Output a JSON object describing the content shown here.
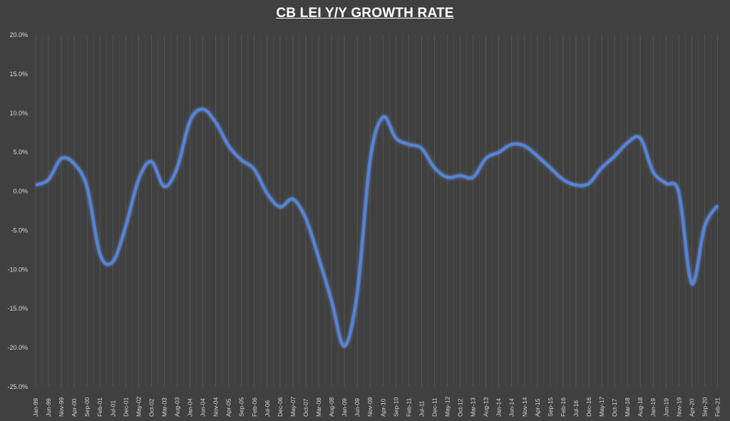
{
  "chart_data": {
    "type": "line",
    "title": "CB LEI Y/Y GROWTH RATE",
    "xlabel": "",
    "ylabel": "",
    "ylim": [
      -25,
      20
    ],
    "y_ticks": [
      "20.0%",
      "15.0%",
      "10.0%",
      "5.0%",
      "0.0%",
      "-5.0%",
      "-10.0%",
      "-15.0%",
      "-20.0%",
      "-25.0%"
    ],
    "x_tick_labels": [
      "Jan-99",
      "Jun-99",
      "Nov-99",
      "Apr-00",
      "Sep-00",
      "Feb-01",
      "Jul-01",
      "Dec-01",
      "May-02",
      "Oct-02",
      "Mar-03",
      "Aug-03",
      "Jan-04",
      "Jun-04",
      "Nov-04",
      "Apr-05",
      "Sep-05",
      "Feb-06",
      "Jul-06",
      "Dec-06",
      "May-07",
      "Oct-07",
      "Mar-08",
      "Aug-08",
      "Jan-09",
      "Jun-09",
      "Nov-09",
      "Apr-10",
      "Sep-10",
      "Feb-11",
      "Jul-11",
      "Dec-11",
      "May-12",
      "Oct-12",
      "Mar-13",
      "Aug-13",
      "Jan-14",
      "Jun-14",
      "Nov-14",
      "Apr-15",
      "Sep-15",
      "Feb-16",
      "Jul-16",
      "Dec-16",
      "May-17",
      "Oct-17",
      "Mar-18",
      "Aug-18",
      "Jan-19",
      "Jun-19",
      "Nov-19",
      "Apr-20",
      "Sep-20",
      "Feb-21"
    ],
    "grid": "vertical",
    "line_color": "#4f86e8",
    "background": "#404040",
    "series": [
      {
        "x": [
          "Jan-99",
          "Jun-99",
          "Nov-99",
          "Apr-00",
          "Sep-00",
          "Feb-01",
          "Jul-01",
          "Dec-01",
          "May-02",
          "Oct-02",
          "Mar-03",
          "Aug-03",
          "Jan-04",
          "Jun-04",
          "Nov-04",
          "Apr-05",
          "Sep-05",
          "Feb-06",
          "Jul-06",
          "Dec-06",
          "May-07",
          "Oct-07",
          "Mar-08",
          "Aug-08",
          "Jan-09",
          "Jun-09",
          "Nov-09",
          "Apr-10",
          "Sep-10",
          "Feb-11",
          "Jul-11",
          "Dec-11",
          "May-12",
          "Oct-12",
          "Mar-13",
          "Aug-13",
          "Jan-14",
          "Jun-14",
          "Nov-14",
          "Apr-15",
          "Sep-15",
          "Feb-16",
          "Jul-16",
          "Dec-16",
          "May-17",
          "Oct-17",
          "Mar-18",
          "Aug-18",
          "Jan-19",
          "Jun-19",
          "Nov-19",
          "Apr-20",
          "Sep-20",
          "Feb-21"
        ],
        "values": [
          0.8,
          1.5,
          4.2,
          3.5,
          0.5,
          -8.0,
          -9.0,
          -4.5,
          1.5,
          3.8,
          0.6,
          3.0,
          9.0,
          10.5,
          8.8,
          5.8,
          4.0,
          2.8,
          -0.3,
          -2.0,
          -1.0,
          -3.5,
          -8.5,
          -14.0,
          -19.8,
          -13.0,
          4.0,
          9.5,
          6.8,
          6.0,
          5.5,
          3.0,
          1.8,
          2.0,
          1.8,
          4.2,
          5.0,
          6.0,
          5.8,
          4.5,
          3.0,
          1.5,
          0.8,
          1.0,
          3.0,
          4.5,
          6.2,
          6.8,
          2.5,
          1.0,
          -0.2,
          -11.8,
          -4.5,
          -1.8
        ]
      }
    ]
  }
}
